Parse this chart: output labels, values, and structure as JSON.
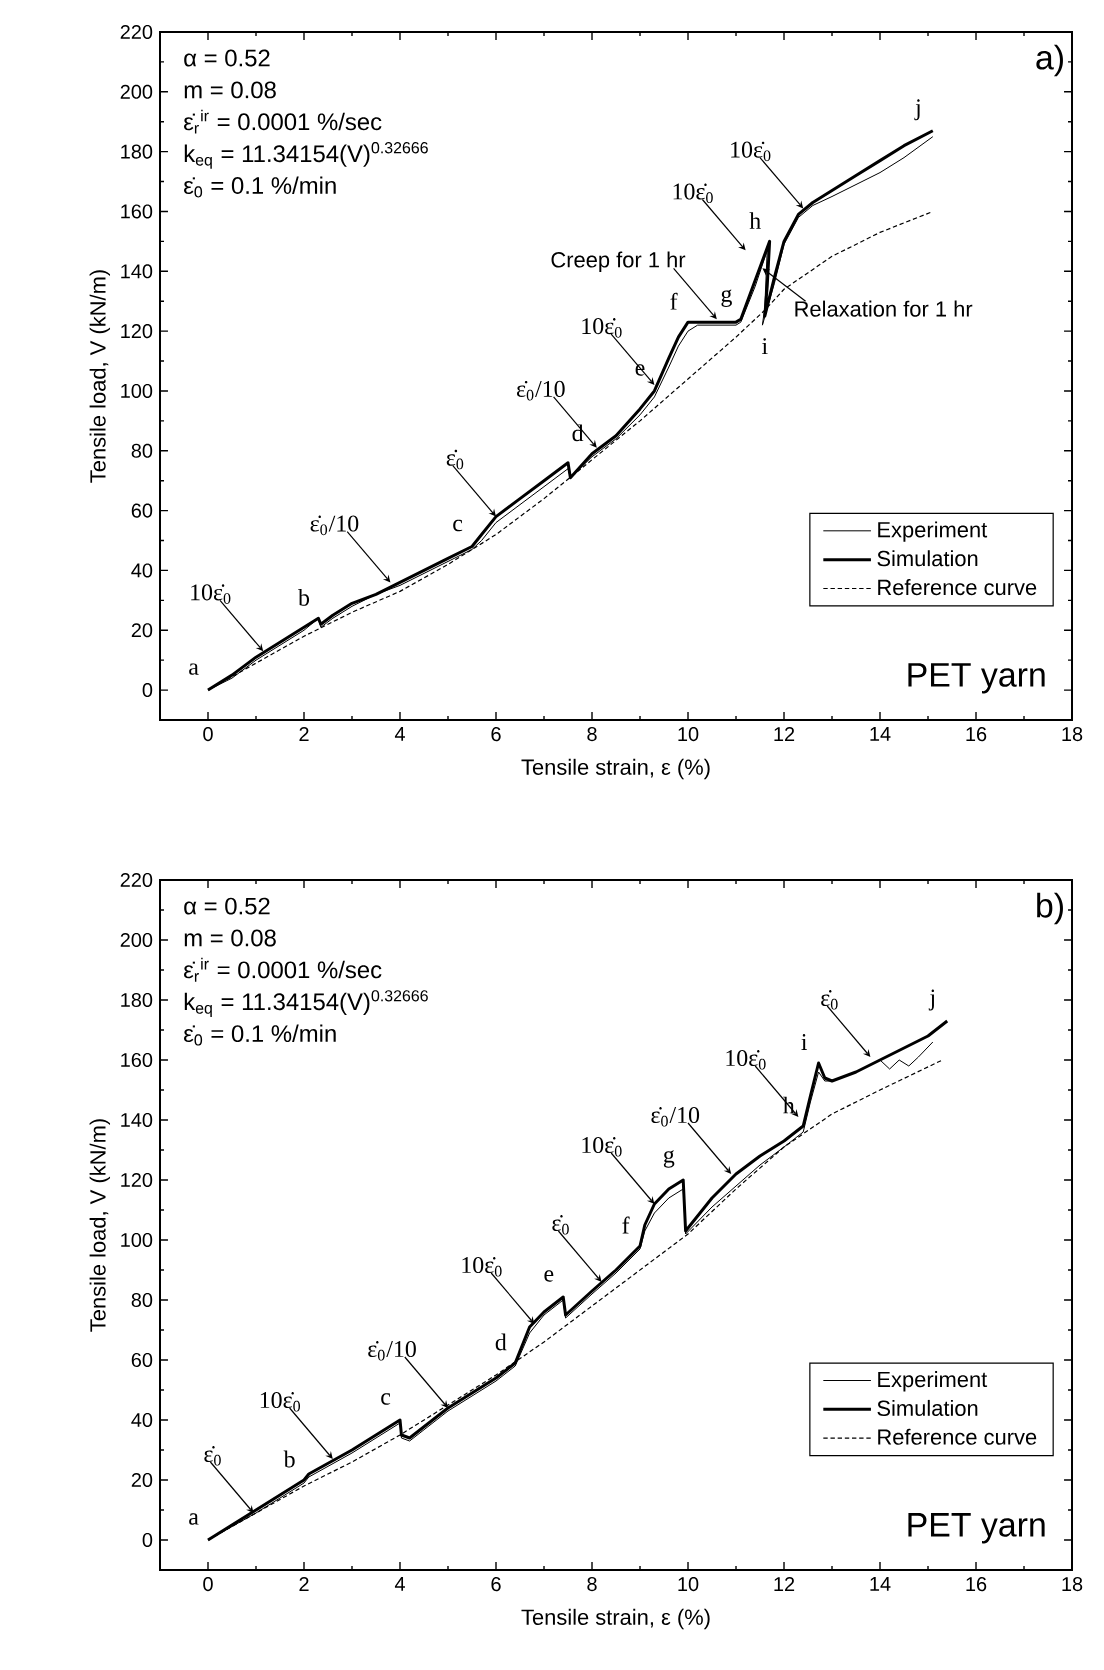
{
  "chart_data": [
    {
      "type": "line",
      "xlabel": "Tensile strain, ε (%)",
      "ylabel": "Tensile load, V (kN/m)",
      "xlim": [
        -1,
        18
      ],
      "ylim": [
        -10,
        220
      ],
      "xticks": [
        0,
        2,
        4,
        6,
        8,
        10,
        12,
        14,
        16,
        18
      ],
      "yticks": [
        0,
        20,
        40,
        60,
        80,
        100,
        120,
        140,
        160,
        180,
        200,
        220
      ],
      "legend": "bottom right",
      "series": [
        {
          "name": "Experiment",
          "color": "#000000",
          "line_style": "solid",
          "x": [
            0,
            0.5,
            1,
            1.5,
            2,
            2.3,
            2.35,
            2.6,
            3,
            3.5,
            4,
            4.5,
            5,
            5.5,
            5.7,
            6,
            6.5,
            7,
            7.5,
            7.55,
            8,
            8.5,
            9,
            9.3,
            9.6,
            9.8,
            10,
            10.2,
            10.5,
            11,
            11.1,
            11.4,
            11.65,
            11.6,
            11.55,
            11.8,
            12,
            12.3,
            12.6,
            13,
            13.5,
            14,
            14.5,
            15.1
          ],
          "values": [
            0,
            4,
            10,
            15,
            20,
            24,
            21,
            24,
            28,
            32,
            35,
            39,
            43,
            47,
            50,
            56,
            62,
            68,
            74,
            71,
            78,
            84,
            92,
            98,
            108,
            115,
            120,
            122,
            122,
            122,
            123,
            135,
            147,
            128,
            122,
            136,
            149,
            158,
            162,
            165,
            169,
            173,
            178,
            185
          ]
        },
        {
          "name": "Simulation",
          "color": "#000000",
          "line_style": "solid",
          "x": [
            0,
            0.5,
            1,
            1.5,
            2,
            2.3,
            2.35,
            2.6,
            3,
            3.5,
            4,
            4.5,
            5,
            5.5,
            5.7,
            6,
            6.5,
            7,
            7.5,
            7.55,
            8,
            8.5,
            9,
            9.3,
            9.6,
            9.8,
            10,
            10.2,
            10.5,
            11,
            11.1,
            11.4,
            11.7,
            11.65,
            11.6,
            11.8,
            12,
            12.3,
            12.6,
            13,
            13.5,
            14,
            14.5,
            15.1
          ],
          "values": [
            0,
            5,
            11,
            16,
            21,
            24,
            22,
            25,
            29,
            32,
            36,
            40,
            44,
            48,
            52,
            58,
            64,
            70,
            76,
            71,
            79,
            85,
            94,
            100,
            111,
            118,
            123,
            123,
            123,
            123,
            124,
            137,
            150,
            135,
            125,
            138,
            150,
            159,
            163,
            167,
            172,
            177,
            182,
            187
          ]
        },
        {
          "name": "Reference curve",
          "color": "#000000",
          "line_style": "dashed",
          "x": [
            0,
            1,
            2,
            3,
            4,
            5,
            6,
            7,
            8,
            9,
            10,
            11,
            11.6,
            12,
            13,
            14,
            15.1
          ],
          "values": [
            0,
            9,
            18,
            26,
            33,
            42,
            52,
            64,
            77,
            90,
            104,
            118,
            127,
            134,
            145,
            153,
            160
          ]
        }
      ],
      "annotations": [
        "α = 0.52",
        "m = 0.08",
        "ε̇$_{r}$$^{ir}$ = 0.0001 %/sec",
        "k$_{eq}$ = 11.34154(V)$^{0.32666}$",
        "ε̇$_{0}$ = 0.1 %/min",
        "a)",
        "PET yarn",
        {
          "text": "a",
          "x": 0,
          "y": 0
        },
        {
          "text": "b",
          "x": 2.3,
          "y": 24
        },
        {
          "text": "c",
          "x": 5.5,
          "y": 48
        },
        {
          "text": "d",
          "x": 8,
          "y": 79
        },
        {
          "text": "e",
          "x": 9.3,
          "y": 100
        },
        {
          "text": "f",
          "x": 10,
          "y": 123
        },
        {
          "text": "g",
          "x": 11.1,
          "y": 124
        },
        {
          "text": "h",
          "x": 11.7,
          "y": 150
        },
        {
          "text": "i",
          "x": 11.6,
          "y": 125
        },
        {
          "text": "j",
          "x": 15.1,
          "y": 187
        },
        {
          "text": "10ε̇$_{0}$",
          "x": 1.15,
          "y": 13
        },
        {
          "text": "ε̇$_{0}$/10",
          "x": 3.8,
          "y": 36
        },
        {
          "text": "ε̇$_{0}$",
          "x": 6.0,
          "y": 58
        },
        {
          "text": "ε̇$_{0}$/10",
          "x": 8.1,
          "y": 81
        },
        {
          "text": "10ε̇$_{0}$",
          "x": 9.3,
          "y": 102
        },
        {
          "text": "Creep for 1 hr",
          "x": 10.6,
          "y": 124
        },
        {
          "text": "10ε̇$_{0}$",
          "x": 11.2,
          "y": 147
        },
        {
          "text": "Relaxation for 1 hr",
          "x": 11.55,
          "y": 141
        },
        {
          "text": "10ε̇$_{0}$",
          "x": 12.4,
          "y": 161
        }
      ]
    },
    {
      "type": "line",
      "xlabel": "Tensile strain, ε (%)",
      "ylabel": "Tensile load, V (kN/m)",
      "xlim": [
        -1,
        18
      ],
      "ylim": [
        -10,
        220
      ],
      "xticks": [
        0,
        2,
        4,
        6,
        8,
        10,
        12,
        14,
        16,
        18
      ],
      "yticks": [
        0,
        20,
        40,
        60,
        80,
        100,
        120,
        140,
        160,
        180,
        200,
        220
      ],
      "legend": "bottom right",
      "series": [
        {
          "name": "Experiment",
          "color": "#000000",
          "line_style": "solid",
          "x": [
            0,
            1,
            2,
            2.1,
            3,
            4,
            4.03,
            4.2,
            5,
            6,
            6.4,
            6.7,
            7,
            7.4,
            7.45,
            8,
            8.5,
            9,
            9.1,
            9.3,
            9.6,
            9.9,
            9.95,
            10.5,
            11,
            11.5,
            12,
            12.4,
            12.55,
            12.72,
            12.85,
            13,
            13.5,
            14,
            14.2,
            14.4,
            14.6,
            14.8,
            15.1
          ],
          "values": [
            0,
            9,
            19,
            21,
            29,
            39,
            34,
            33,
            43,
            53,
            58,
            69,
            75,
            80,
            74,
            82,
            89,
            97,
            103,
            109,
            114,
            117,
            102,
            111,
            118,
            125,
            131,
            136,
            146,
            156,
            153,
            153,
            156,
            160,
            157,
            160,
            158,
            161,
            166
          ]
        },
        {
          "name": "Simulation",
          "color": "#000000",
          "line_style": "solid",
          "x": [
            0,
            1,
            2,
            2.1,
            3,
            4,
            4.03,
            4.2,
            5,
            6,
            6.4,
            6.7,
            7,
            7.4,
            7.45,
            8,
            8.5,
            9,
            9.1,
            9.3,
            9.6,
            9.9,
            9.95,
            10.5,
            11,
            11.5,
            12,
            12.4,
            12.55,
            12.72,
            12.85,
            13,
            13.5,
            14,
            14.5,
            15,
            15.4
          ],
          "values": [
            0,
            10,
            20,
            22,
            30,
            40,
            35,
            34,
            44,
            54,
            59,
            71,
            76,
            81,
            75,
            83,
            90,
            98,
            105,
            112,
            117,
            120,
            103,
            114,
            122,
            128,
            133,
            138,
            148,
            159,
            154,
            153,
            156,
            160,
            164,
            168,
            173
          ]
        },
        {
          "name": "Reference curve",
          "color": "#000000",
          "line_style": "dashed",
          "x": [
            0,
            1,
            2,
            3,
            4,
            5,
            6,
            7,
            8,
            9,
            10,
            11,
            12,
            13,
            14,
            15.3
          ],
          "values": [
            0,
            9,
            18,
            26,
            35,
            45,
            55,
            66,
            78,
            90,
            102,
            117,
            131,
            142,
            150,
            160
          ]
        }
      ],
      "annotations": [
        "α = 0.52",
        "m = 0.08",
        "ε̇$_{r}$$^{ir}$ = 0.0001 %/sec",
        "k$_{eq}$ = 11.34154(V)$^{0.32666}$",
        "ε̇$_{0}$ = 0.1 %/min",
        "b)",
        "PET yarn",
        {
          "text": "a",
          "x": 0,
          "y": 0
        },
        {
          "text": "b",
          "x": 2,
          "y": 20
        },
        {
          "text": "c",
          "x": 4,
          "y": 40
        },
        {
          "text": "d",
          "x": 6.4,
          "y": 59
        },
        {
          "text": "e",
          "x": 7.4,
          "y": 81
        },
        {
          "text": "f",
          "x": 9,
          "y": 98
        },
        {
          "text": "g",
          "x": 9.9,
          "y": 120
        },
        {
          "text": "h",
          "x": 12.4,
          "y": 138
        },
        {
          "text": "i",
          "x": 12.72,
          "y": 159
        },
        {
          "text": "j",
          "x": 15.4,
          "y": 173
        },
        {
          "text": "ε̇$_{0}$",
          "x": 0.95,
          "y": 9
        },
        {
          "text": "10ε̇$_{0}$",
          "x": 2.6,
          "y": 27
        },
        {
          "text": "ε̇$_{0}$/10",
          "x": 5.0,
          "y": 44
        },
        {
          "text": "10ε̇$_{0}$",
          "x": 6.8,
          "y": 72
        },
        {
          "text": "ε̇$_{0}$",
          "x": 8.2,
          "y": 86
        },
        {
          "text": "10ε̇$_{0}$",
          "x": 9.3,
          "y": 112
        },
        {
          "text": "ε̇$_{0}$/10",
          "x": 10.9,
          "y": 122
        },
        {
          "text": "10ε̇$_{0}$",
          "x": 12.3,
          "y": 141
        },
        {
          "text": "ε̇$_{0}$",
          "x": 13.8,
          "y": 161
        }
      ]
    }
  ]
}
